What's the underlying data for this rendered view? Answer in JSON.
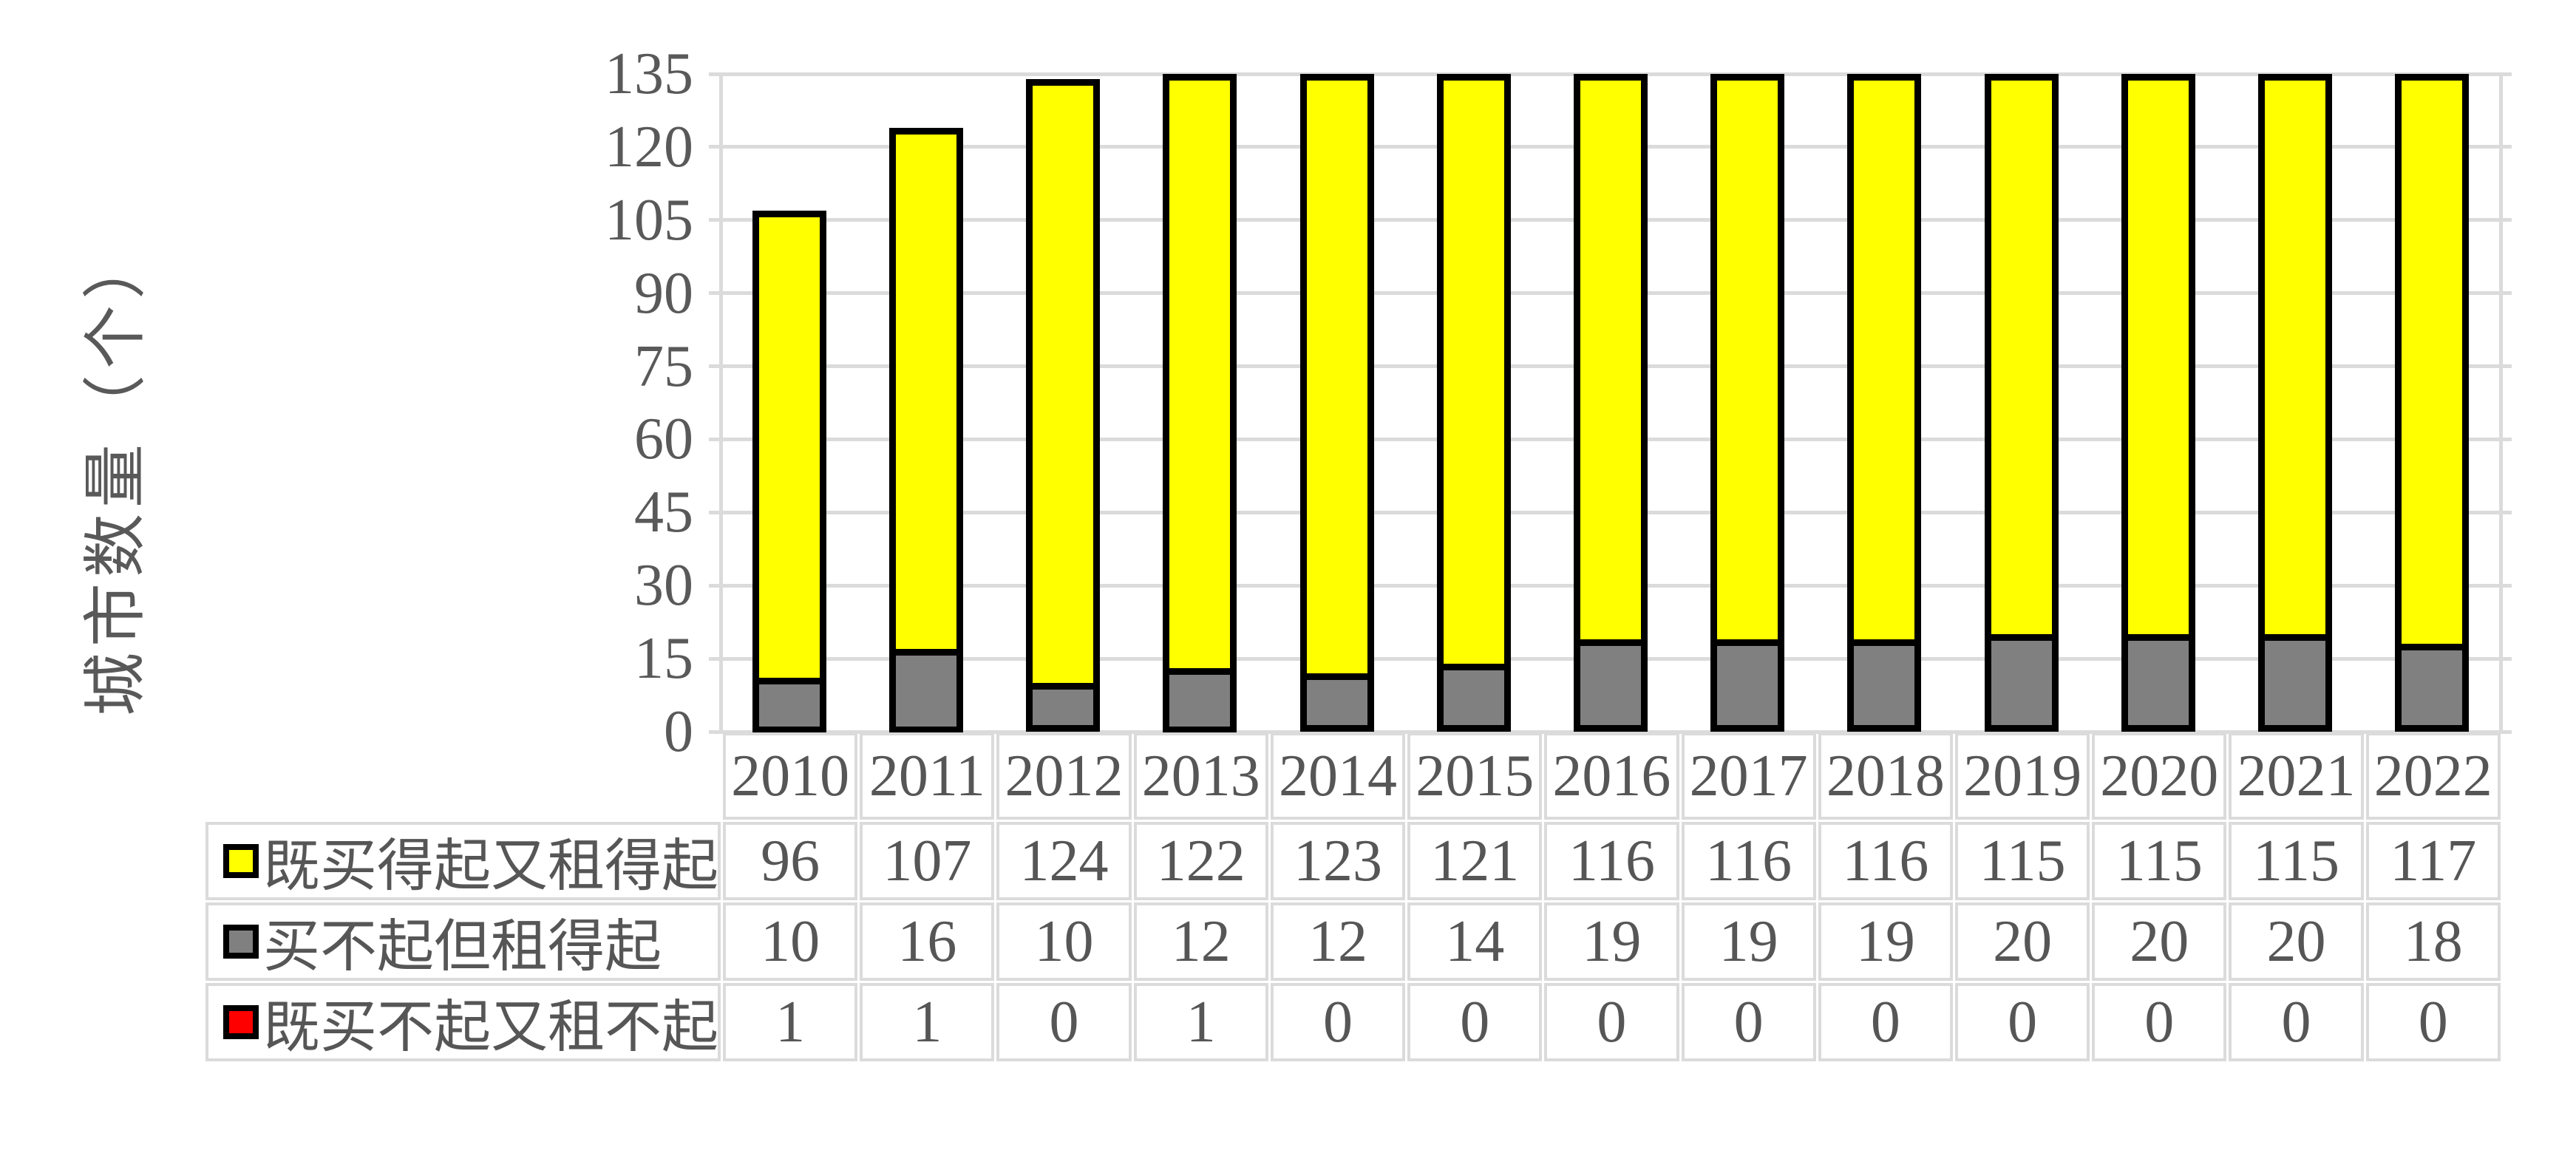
{
  "chart_data": {
    "type": "bar",
    "stacked": true,
    "title": "",
    "ylabel": "城市数量（个）",
    "xlabel": "",
    "categories": [
      "2010",
      "2011",
      "2012",
      "2013",
      "2014",
      "2015",
      "2016",
      "2017",
      "2018",
      "2019",
      "2020",
      "2021",
      "2022"
    ],
    "series": [
      {
        "name": "既买得起又租得起",
        "color": "#ffff00",
        "values": [
          96,
          107,
          124,
          122,
          123,
          121,
          116,
          116,
          116,
          115,
          115,
          115,
          117
        ]
      },
      {
        "name": "买不起但租得起",
        "color": "#808080",
        "values": [
          10,
          16,
          10,
          12,
          12,
          14,
          19,
          19,
          19,
          20,
          20,
          20,
          18
        ]
      },
      {
        "name": "既买不起又租不起",
        "color": "#ff0000",
        "values": [
          1,
          1,
          0,
          1,
          0,
          0,
          0,
          0,
          0,
          0,
          0,
          0,
          0
        ]
      }
    ],
    "stack_order_bottom_to_top": [
      "既买不起又租不起",
      "买不起但租得起",
      "既买得起又租得起"
    ],
    "ylim": [
      0,
      135
    ],
    "ytick_step": 15,
    "yticks": [
      0,
      15,
      30,
      45,
      60,
      75,
      90,
      105,
      120,
      135
    ],
    "grid": "horizontal-major",
    "legend_position": "table-rows-left",
    "bar_border_color": "#000000",
    "colors": {
      "gridline": "#dbdbdb",
      "axis": "#dbdbdb",
      "text": "#595959",
      "table_border": "#dbdbdb",
      "background": "#ffffff"
    }
  }
}
